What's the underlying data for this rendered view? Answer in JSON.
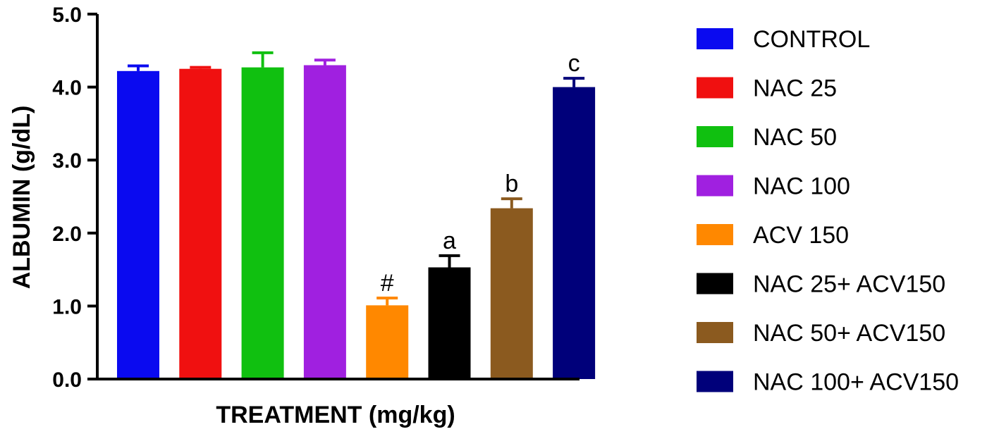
{
  "chart_data": {
    "type": "bar",
    "title": "",
    "xlabel": "TREATMENT (mg/kg)",
    "ylabel": "ALBUMIN (g/dL)",
    "ylim": [
      0,
      5.0
    ],
    "yticks": [
      "0.0",
      "1.0",
      "2.0",
      "3.0",
      "4.0",
      "5.0"
    ],
    "ytick_values": [
      0,
      1,
      2,
      3,
      4,
      5
    ],
    "grid": false,
    "legend_position": "right",
    "categories": [
      "CONTROL",
      "NAC 25",
      "NAC 50",
      "NAC 100",
      "ACV 150",
      "NAC 25+ ACV150",
      "NAC 50+ ACV150",
      "NAC 100+ ACV150"
    ],
    "values": [
      4.22,
      4.25,
      4.27,
      4.3,
      1.01,
      1.53,
      2.34,
      4.0
    ],
    "errors": [
      0.07,
      0.02,
      0.2,
      0.07,
      0.1,
      0.16,
      0.13,
      0.12
    ],
    "significance": [
      "",
      "",
      "",
      "",
      "#",
      "a",
      "b",
      "c"
    ],
    "colors": [
      "#0a0af0",
      "#f01010",
      "#10c010",
      "#a020e0",
      "#ff8800",
      "#000000",
      "#8b5a1f",
      "#00007a"
    ]
  }
}
